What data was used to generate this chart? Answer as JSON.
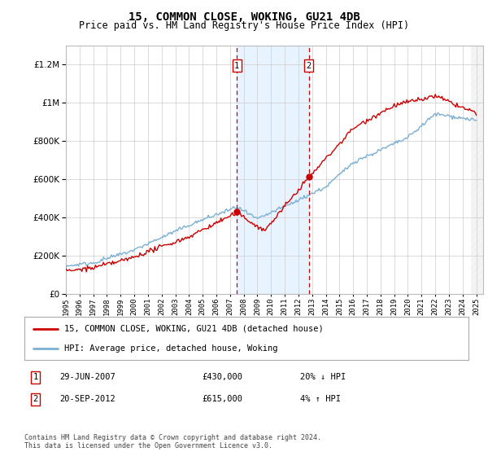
{
  "title": "15, COMMON CLOSE, WOKING, GU21 4DB",
  "subtitle": "Price paid vs. HM Land Registry's House Price Index (HPI)",
  "ylim": [
    0,
    1300000
  ],
  "yticks": [
    0,
    200000,
    400000,
    600000,
    800000,
    1000000,
    1200000
  ],
  "ytick_labels": [
    "£0",
    "£200K",
    "£400K",
    "£600K",
    "£800K",
    "£1M",
    "£1.2M"
  ],
  "hpi_color": "#7bafd4",
  "price_color": "#cc0000",
  "marker1_x": 2007.5,
  "marker2_x": 2012.75,
  "marker1_price": 430000,
  "marker2_price": 615000,
  "legend_line1": "15, COMMON CLOSE, WOKING, GU21 4DB (detached house)",
  "legend_line2": "HPI: Average price, detached house, Woking",
  "footnote1": "Contains HM Land Registry data © Crown copyright and database right 2024.",
  "footnote2": "This data is licensed under the Open Government Licence v3.0.",
  "background_color": "#ffffff",
  "grid_color": "#cccccc",
  "shade_color": "#ddeeff"
}
